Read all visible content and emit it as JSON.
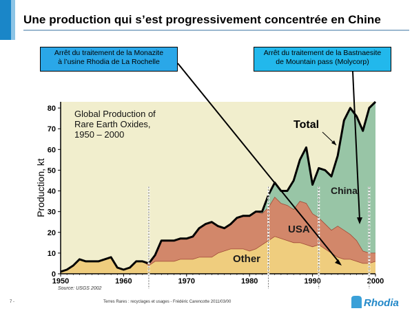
{
  "slide": {
    "title": "Une production qui s’est progressivement concentrée en Chine",
    "page_number": "7 -",
    "footer_text": "Terres Rares : recyclages et usages - Frédéric Carencotte 2011/03/00",
    "logo_text": "Rhodia",
    "callout_left": [
      "Arrêt du traitement de la Monazite",
      "à l’usine Rhodia de La Rochelle"
    ],
    "callout_right": [
      "Arrêt du traitement de la Bastnaesite",
      "de Mountain pass (Molycorp)"
    ],
    "source": "Source: USGS 2002"
  },
  "colors": {
    "accent": "#1a86c8",
    "callout_left": "#2aa7e8",
    "callout_right": "#22b8ec",
    "plot_bg": "#f1eecd",
    "china": "#98c5a6",
    "usa": "#d2876a",
    "other": "#efcd7e"
  },
  "chart_data": {
    "type": "area",
    "title": [
      "Global Production of",
      "Rare Earth Oxides,",
      "1950 – 2000"
    ],
    "xlabel": "",
    "ylabel": "Production, kt",
    "xlim": [
      1950,
      2000
    ],
    "ylim": [
      0,
      83
    ],
    "xticks": [
      1950,
      1960,
      1970,
      1980,
      1990,
      2000
    ],
    "yticks": [
      0,
      10,
      20,
      30,
      40,
      50,
      60,
      70,
      80
    ],
    "x": [
      1950,
      1951,
      1952,
      1953,
      1954,
      1955,
      1956,
      1957,
      1958,
      1959,
      1960,
      1961,
      1962,
      1963,
      1964,
      1965,
      1966,
      1967,
      1968,
      1969,
      1970,
      1971,
      1972,
      1973,
      1974,
      1975,
      1976,
      1977,
      1978,
      1979,
      1980,
      1981,
      1982,
      1983,
      1984,
      1985,
      1986,
      1987,
      1988,
      1989,
      1990,
      1991,
      1992,
      1993,
      1994,
      1995,
      1996,
      1997,
      1998,
      1999,
      2000
    ],
    "series": [
      {
        "name": "Other",
        "values": [
          1,
          2,
          4,
          7,
          6,
          6,
          6,
          7,
          8,
          3,
          2,
          3,
          6,
          6,
          4,
          6,
          6,
          6,
          6,
          7,
          7,
          7,
          8,
          8,
          8,
          10,
          11,
          12,
          12,
          12,
          11,
          12,
          14,
          16,
          18,
          17,
          16,
          15,
          15,
          14,
          13,
          14,
          12,
          10,
          8,
          7,
          7,
          6,
          5,
          5,
          6
        ]
      },
      {
        "name": "USA",
        "values": [
          0,
          0,
          0,
          0,
          0,
          0,
          0,
          0,
          0,
          0,
          0,
          0,
          0,
          0,
          1,
          3,
          10,
          10,
          10,
          10,
          10,
          11,
          14,
          16,
          17,
          13,
          11,
          12,
          15,
          16,
          17,
          18,
          15,
          16,
          19,
          17,
          17,
          16,
          20,
          20,
          16,
          13,
          12,
          11,
          15,
          14,
          12,
          10,
          6,
          5,
          4
        ]
      },
      {
        "name": "China",
        "values": [
          0,
          0,
          0,
          0,
          0,
          0,
          0,
          0,
          0,
          0,
          0,
          0,
          0,
          0,
          0,
          0,
          0,
          0,
          0,
          0,
          0,
          0,
          0,
          0,
          0,
          0,
          0,
          0,
          0,
          0,
          0,
          0,
          1,
          6,
          7,
          6,
          7,
          14,
          20,
          27,
          14,
          24,
          26,
          26,
          34,
          53,
          61,
          60,
          58,
          70,
          73
        ]
      }
    ],
    "total_label": "Total",
    "area_labels": [
      "China",
      "USA",
      "Other"
    ],
    "markers": [
      1964,
      1983,
      1991,
      1999
    ]
  }
}
